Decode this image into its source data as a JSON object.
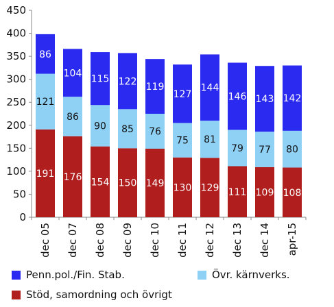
{
  "chart_data": {
    "type": "bar",
    "stacked": true,
    "categories": [
      "dec 05",
      "dec 07",
      "dec 08",
      "dec 09",
      "dec 10",
      "dec 11",
      "dec 12",
      "dec 13",
      "dec 14",
      "apr-15"
    ],
    "series": [
      {
        "name": "Stöd, samordning och övrigt",
        "color": "#b01e1e",
        "values": [
          191,
          176,
          154,
          150,
          149,
          130,
          129,
          111,
          109,
          108
        ]
      },
      {
        "name": "Övr. kärnverks.",
        "color": "#8fd0f5",
        "values": [
          121,
          86,
          90,
          85,
          76,
          75,
          81,
          79,
          77,
          80
        ]
      },
      {
        "name": "Penn.pol./Fin. Stab.",
        "color": "#2a2af0",
        "values": [
          86,
          104,
          115,
          122,
          119,
          127,
          144,
          146,
          143,
          142
        ]
      }
    ],
    "ylim": [
      0,
      450
    ],
    "yticks": [
      0,
      50,
      100,
      150,
      200,
      250,
      300,
      350,
      400,
      450
    ],
    "grid": false,
    "legend_position": "bottom"
  },
  "legend": [
    {
      "label": "Penn.pol./Fin. Stab.",
      "color": "#2a2af0"
    },
    {
      "label": "Övr. kärnverks.",
      "color": "#8fd0f5"
    },
    {
      "label": "Stöd, samordning och övrigt",
      "color": "#b01e1e"
    }
  ]
}
